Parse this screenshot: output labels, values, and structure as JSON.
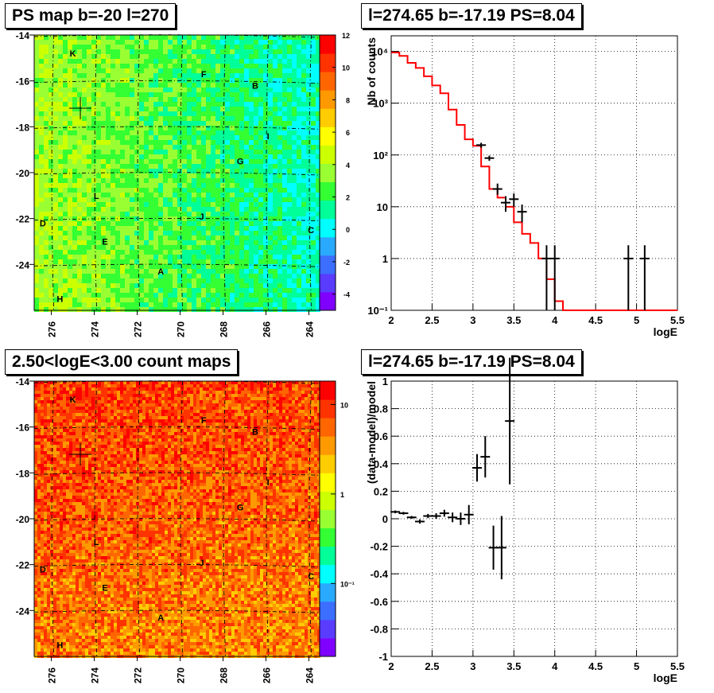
{
  "panels": {
    "map_top_title": "PS map b=-20 l=270",
    "map_bottom_title": "2.50<logE<3.00 count maps",
    "spec_top_title": "l=274.65 b=-17.19 PS=8.04",
    "spec_bottom_title": "l=274.65 b=-17.19 PS=8.04"
  },
  "maps": {
    "x_ticks": [
      "276",
      "274",
      "272",
      "270",
      "268",
      "266",
      "264"
    ],
    "y_ticks": [
      "-14",
      "-16",
      "-18",
      "-20",
      "-22",
      "-24"
    ],
    "sources": [
      {
        "label": "K",
        "l": 275.0,
        "b": -14.8
      },
      {
        "label": "F",
        "l": 268.9,
        "b": -15.7
      },
      {
        "label": "B",
        "l": 266.5,
        "b": -16.2
      },
      {
        "label": "I",
        "l": 265.9,
        "b": -18.4
      },
      {
        "label": "G",
        "l": 267.2,
        "b": -19.5
      },
      {
        "label": "L",
        "l": 273.9,
        "b": -21.0
      },
      {
        "label": "J",
        "l": 269.0,
        "b": -21.9
      },
      {
        "label": "D",
        "l": 276.4,
        "b": -22.2
      },
      {
        "label": "E",
        "l": 273.5,
        "b": -23.0
      },
      {
        "label": "C",
        "l": 263.9,
        "b": -22.5
      },
      {
        "label": "A",
        "l": 270.9,
        "b": -24.3
      },
      {
        "label": "H",
        "l": 275.6,
        "b": -25.5
      }
    ],
    "marker": {
      "l": 274.65,
      "b": -17.19
    },
    "ps_palette_labels": [
      "12",
      "10",
      "8",
      "6",
      "4",
      "2",
      "0",
      "-2",
      "-4"
    ],
    "count_palette_labels": [
      "10",
      "1",
      "10⁻¹"
    ],
    "palette_colors": [
      "#7f00ff",
      "#5a3cff",
      "#3c6eff",
      "#2aaaff",
      "#00ffff",
      "#00ff99",
      "#33ff33",
      "#99ff33",
      "#ccff00",
      "#ffff00",
      "#ffcc00",
      "#ff9900",
      "#ff6600",
      "#ff3300",
      "#ff0000"
    ]
  },
  "chart_data": [
    {
      "type": "line",
      "title": "l=274.65 b=-17.19 PS=8.04",
      "xlabel": "logE",
      "ylabel": "Nb of counts",
      "xlim": [
        2,
        5.5
      ],
      "ylim": [
        0.1,
        20000
      ],
      "y_scale": "log",
      "x_ticks": [
        "2",
        "2.5",
        "3",
        "3.5",
        "4",
        "4.5",
        "5",
        "5.5"
      ],
      "y_ticks": [
        {
          "v": 10000,
          "t": "10⁴"
        },
        {
          "v": 1000,
          "t": "10³"
        },
        {
          "v": 100,
          "t": "10²"
        },
        {
          "v": 10,
          "t": "10"
        },
        {
          "v": 1,
          "t": "1"
        },
        {
          "v": 0.1,
          "t": "10⁻¹"
        }
      ],
      "grid": true,
      "model_step_edges": [
        2.0,
        2.1,
        2.2,
        2.3,
        2.4,
        2.5,
        2.6,
        2.7,
        2.8,
        2.9,
        3.0,
        3.1,
        3.2,
        3.3,
        3.4,
        3.5,
        3.6,
        3.7,
        3.8,
        3.9,
        4.0,
        4.1,
        5.5
      ],
      "model_values": [
        9500,
        8200,
        6000,
        4800,
        3300,
        2200,
        1550,
        750,
        380,
        200,
        150,
        60,
        22,
        15,
        10,
        5,
        3,
        2,
        1,
        0.4,
        0.15,
        0.1
      ],
      "data": [
        {
          "x": 3.1,
          "y": 155,
          "lo": 138,
          "hi": 172
        },
        {
          "x": 3.2,
          "y": 87,
          "lo": 77,
          "hi": 97
        },
        {
          "x": 3.3,
          "y": 22,
          "lo": 17,
          "hi": 28
        },
        {
          "x": 3.4,
          "y": 12,
          "lo": 8,
          "hi": 16
        },
        {
          "x": 3.5,
          "y": 14,
          "lo": 10,
          "hi": 18
        },
        {
          "x": 3.6,
          "y": 8,
          "lo": 5,
          "hi": 11
        },
        {
          "x": 3.9,
          "y": 1,
          "lo": 0.1,
          "hi": 1.8
        },
        {
          "x": 4.0,
          "y": 1,
          "lo": 0.1,
          "hi": 1.8
        },
        {
          "x": 4.9,
          "y": 1,
          "lo": 0.1,
          "hi": 1.8
        },
        {
          "x": 5.1,
          "y": 1,
          "lo": 0.1,
          "hi": 1.8
        }
      ]
    },
    {
      "type": "scatter",
      "title": "l=274.65 b=-17.19 PS=8.04",
      "xlabel": "logE",
      "ylabel": "(data-model)/model",
      "xlim": [
        2,
        5.5
      ],
      "ylim": [
        -1,
        1
      ],
      "x_ticks": [
        "2",
        "2.5",
        "3",
        "3.5",
        "4",
        "4.5",
        "5",
        "5.5"
      ],
      "y_ticks": [
        "1",
        "0.8",
        "0.6",
        "0.4",
        "0.2",
        "0",
        "-0.2",
        "-0.4",
        "-0.6",
        "-0.8",
        "-1"
      ],
      "grid": true,
      "points": [
        {
          "x": 2.05,
          "y": 0.05,
          "err": 0.01
        },
        {
          "x": 2.15,
          "y": 0.04,
          "err": 0.01
        },
        {
          "x": 2.25,
          "y": 0.01,
          "err": 0.01
        },
        {
          "x": 2.35,
          "y": -0.02,
          "err": 0.015
        },
        {
          "x": 2.45,
          "y": 0.02,
          "err": 0.015
        },
        {
          "x": 2.55,
          "y": 0.02,
          "err": 0.02
        },
        {
          "x": 2.65,
          "y": 0.04,
          "err": 0.025
        },
        {
          "x": 2.75,
          "y": 0.01,
          "err": 0.035
        },
        {
          "x": 2.85,
          "y": 0.0,
          "err": 0.045
        },
        {
          "x": 2.95,
          "y": 0.03,
          "err": 0.07
        },
        {
          "x": 3.05,
          "y": 0.37,
          "err": 0.1
        },
        {
          "x": 3.15,
          "y": 0.45,
          "err": 0.15
        },
        {
          "x": 3.25,
          "y": -0.21,
          "err": 0.16
        },
        {
          "x": 3.35,
          "y": -0.21,
          "err": 0.23
        },
        {
          "x": 3.45,
          "y": 0.71,
          "err": 0.46
        }
      ]
    }
  ]
}
